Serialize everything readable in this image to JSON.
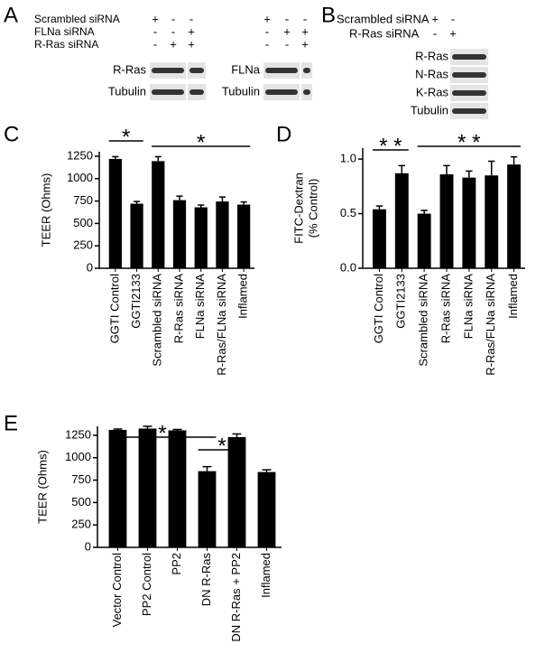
{
  "panel_labels": [
    "A",
    "B",
    "C",
    "D",
    "E"
  ],
  "blot_a": {
    "conditions": [
      "Scrambled siRNA",
      "FLNa siRNA",
      "R-Ras siRNA"
    ],
    "groups": [
      {
        "signs": [
          [
            "+",
            "-",
            "-"
          ],
          [
            "-",
            "-",
            "+"
          ],
          [
            "-",
            "+",
            "+"
          ]
        ],
        "bands": [
          "R-Ras",
          "Tubulin"
        ]
      },
      {
        "signs": [
          [
            "+",
            "-",
            "-"
          ],
          [
            "-",
            "+",
            "+"
          ],
          [
            "-",
            "-",
            "+"
          ]
        ],
        "bands": [
          "FLNa",
          "Tubulin"
        ]
      }
    ]
  },
  "blot_b": {
    "conditions": [
      "Scrambled siRNA",
      "R-Ras siRNA"
    ],
    "signs": [
      [
        "+",
        "-"
      ],
      [
        "-",
        "+"
      ]
    ],
    "bands": [
      "R-Ras",
      "N-Ras",
      "K-Ras",
      "Tubulin"
    ]
  },
  "chart_data": [
    {
      "type": "bar",
      "ylabel": [
        "TEER (Ohms)"
      ],
      "categories": [
        "GGTI Control",
        "GGTI2133",
        "Scrambled siRNA",
        "R-Ras siRNA",
        "FLNa siRNA",
        "R-Ras/FLNa siRNA",
        "Inflamed"
      ],
      "values": [
        1220,
        720,
        1195,
        760,
        680,
        745,
        710
      ],
      "errors": [
        25,
        25,
        50,
        45,
        25,
        50,
        30
      ],
      "color": "#000000",
      "ylim": [
        0,
        1300
      ],
      "yticks": [
        0,
        250,
        500,
        750,
        1000,
        1250
      ],
      "annotations": [
        "*",
        "*"
      ]
    },
    {
      "type": "bar",
      "ylabel": [
        "FITC-Dextran",
        "(% Control)"
      ],
      "categories": [
        "GGTI Control",
        "GGTI2133",
        "Scrambled siRNA",
        "R-Ras siRNA",
        "FLNa siRNA",
        "R-Ras/FLNa siRNA",
        "Inflamed"
      ],
      "values": [
        0.54,
        0.87,
        0.5,
        0.86,
        0.83,
        0.85,
        0.95
      ],
      "errors": [
        0.03,
        0.07,
        0.03,
        0.08,
        0.06,
        0.13,
        0.07
      ],
      "color": "#000000",
      "ylim": [
        0,
        1.1
      ],
      "yticks": [
        {
          "value": 0,
          "label": "0.0"
        },
        {
          "value": 0.5,
          "label": "0.5"
        },
        {
          "value": 1,
          "label": "1.0"
        }
      ],
      "annotations": [
        "* *",
        "* *"
      ]
    },
    {
      "type": "bar",
      "ylabel": [
        "TEER (Ohms)"
      ],
      "categories": [
        "Vector Control",
        "PP2 Control",
        "PP2",
        "DN R-Ras",
        "DN R-Ras + PP2",
        "Inflamed"
      ],
      "values": [
        1310,
        1325,
        1305,
        850,
        1230,
        840
      ],
      "errors": [
        10,
        25,
        10,
        50,
        35,
        25
      ],
      "color": "#000000",
      "ylim": [
        0,
        1350
      ],
      "yticks": [
        0,
        250,
        500,
        750,
        1000,
        1250
      ],
      "annotations": [
        "*",
        "*"
      ]
    }
  ]
}
